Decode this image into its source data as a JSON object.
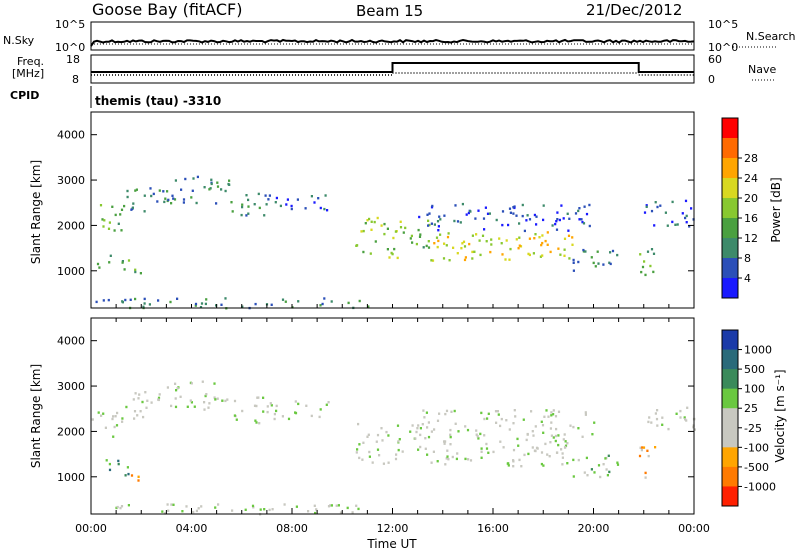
{
  "header": {
    "station": "Goose Bay (fitACF)",
    "beam": "Beam 15",
    "date": "21/Dec/2012"
  },
  "noise_panel": {
    "left_label": "N.Sky",
    "right_label": "N.Search",
    "left_ticks": [
      "10^5",
      "10^0"
    ],
    "right_ticks": [
      "10^5",
      "10^0"
    ]
  },
  "freq_panel": {
    "left_label_line1": "Freq.",
    "left_label_line2": "[MHz]",
    "cpid_label": "CPID",
    "right_label": "Nave",
    "left_ticks": [
      "18",
      "8"
    ],
    "right_ticks": [
      "60",
      "0"
    ],
    "cpid_text": "themis (tau) -3310"
  },
  "colors": {
    "power": [
      "#1a1aff",
      "#2b4fb8",
      "#3d8a6a",
      "#4aa040",
      "#88c830",
      "#d8d820",
      "#ffa500",
      "#ff6a00",
      "#ff0000"
    ],
    "velocity": [
      "#1a3aa8",
      "#2a6a7a",
      "#3a8a5a",
      "#6ac840",
      "#c8c8c0",
      "#c8c8c0",
      "#ffa500",
      "#ff7a00",
      "#ff2000"
    ]
  },
  "chart_data": [
    {
      "type": "heatmap",
      "title": "Power",
      "ylabel": "Slant Range [km]",
      "colorbar_label": "Power [dB]",
      "colorbar_ticks": [
        "4",
        "8",
        "12",
        "16",
        "20",
        "24",
        "28"
      ],
      "ylim": [
        180,
        4500
      ],
      "yticks": [
        1000,
        2000,
        3000,
        4000
      ],
      "xlim": [
        0,
        24
      ],
      "echo_regions": [
        {
          "t0": 0.0,
          "t1": 1.2,
          "r0": 1900,
          "r1": 2500,
          "level": 3
        },
        {
          "t0": 1.2,
          "t1": 3.0,
          "r0": 2300,
          "r1": 2900,
          "level": 2
        },
        {
          "t0": 3.0,
          "t1": 5.5,
          "r0": 2500,
          "r1": 3150,
          "level": 2
        },
        {
          "t0": 5.5,
          "t1": 7.0,
          "r0": 2200,
          "r1": 2800,
          "level": 2
        },
        {
          "t0": 7.0,
          "t1": 9.5,
          "r0": 2300,
          "r1": 2700,
          "level": 1
        },
        {
          "t0": 0.2,
          "t1": 1.5,
          "r0": 1050,
          "r1": 1400,
          "level": 3
        },
        {
          "t0": 1.5,
          "t1": 2.2,
          "r0": 850,
          "r1": 1100,
          "level": 3
        },
        {
          "t0": 10.5,
          "t1": 12.3,
          "r0": 1300,
          "r1": 2200,
          "level": 4
        },
        {
          "t0": 12.3,
          "t1": 13.5,
          "r0": 1500,
          "r1": 2200,
          "level": 3
        },
        {
          "t0": 13.5,
          "t1": 19.5,
          "r0": 1250,
          "r1": 1900,
          "level": 5
        },
        {
          "t0": 13.0,
          "t1": 20.0,
          "r0": 1900,
          "r1": 2500,
          "level": 1
        },
        {
          "t0": 19.0,
          "t1": 21.0,
          "r0": 1000,
          "r1": 1500,
          "level": 2
        },
        {
          "t0": 21.8,
          "t1": 22.5,
          "r0": 900,
          "r1": 1700,
          "level": 3
        },
        {
          "t0": 22.0,
          "t1": 24.0,
          "r0": 2000,
          "r1": 2600,
          "level": 1
        },
        {
          "t0": 0.0,
          "t1": 11.0,
          "r0": 200,
          "r1": 420,
          "level": 2
        }
      ]
    },
    {
      "type": "heatmap",
      "title": "Velocity",
      "ylabel": "Slant Range [km]",
      "xlabel": "Time UT",
      "colorbar_label": "Velocity [m s⁻¹]",
      "colorbar_ticks": [
        "1000",
        "500",
        "100",
        "25",
        "-25",
        "-100",
        "-500",
        "-1000"
      ],
      "ylim": [
        180,
        4500
      ],
      "yticks": [
        1000,
        2000,
        3000,
        4000
      ],
      "xlim": [
        0,
        24
      ],
      "xticks": [
        "00:00",
        "04:00",
        "08:00",
        "12:00",
        "16:00",
        "20:00",
        "00:00"
      ],
      "echo_regions": [
        {
          "t0": 0.0,
          "t1": 1.2,
          "r0": 1900,
          "r1": 2500,
          "level": 4
        },
        {
          "t0": 1.2,
          "t1": 3.0,
          "r0": 2300,
          "r1": 2900,
          "level": 4
        },
        {
          "t0": 3.0,
          "t1": 5.5,
          "r0": 2500,
          "r1": 3150,
          "level": 4
        },
        {
          "t0": 5.5,
          "t1": 7.0,
          "r0": 2200,
          "r1": 2800,
          "level": 4
        },
        {
          "t0": 7.0,
          "t1": 9.5,
          "r0": 2300,
          "r1": 2700,
          "level": 4
        },
        {
          "t0": 0.2,
          "t1": 1.5,
          "r0": 1050,
          "r1": 1400,
          "level": 2
        },
        {
          "t0": 1.5,
          "t1": 2.2,
          "r0": 850,
          "r1": 1100,
          "level": 7
        },
        {
          "t0": 10.5,
          "t1": 12.3,
          "r0": 1300,
          "r1": 2200,
          "level": 4
        },
        {
          "t0": 12.3,
          "t1": 13.5,
          "r0": 1500,
          "r1": 2200,
          "level": 4
        },
        {
          "t0": 13.5,
          "t1": 19.5,
          "r0": 1250,
          "r1": 1900,
          "level": 4
        },
        {
          "t0": 13.0,
          "t1": 20.0,
          "r0": 1900,
          "r1": 2500,
          "level": 4
        },
        {
          "t0": 19.0,
          "t1": 21.0,
          "r0": 1000,
          "r1": 1500,
          "level": 3
        },
        {
          "t0": 21.8,
          "t1": 22.5,
          "r0": 900,
          "r1": 1700,
          "level": 6
        },
        {
          "t0": 22.0,
          "t1": 24.0,
          "r0": 2000,
          "r1": 2600,
          "level": 4
        },
        {
          "t0": 0.0,
          "t1": 11.0,
          "r0": 200,
          "r1": 420,
          "level": 4
        }
      ]
    }
  ]
}
